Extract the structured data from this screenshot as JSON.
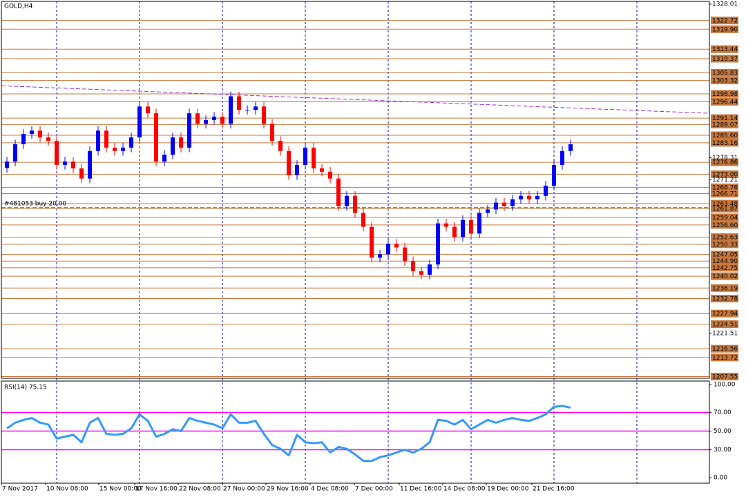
{
  "chart_data": [
    {
      "type": "candlestick",
      "title": "GOLD,H4",
      "x": [
        4,
        5,
        6,
        7,
        8,
        9,
        10,
        11,
        12,
        13,
        14,
        15,
        16,
        17,
        18,
        19,
        20,
        21,
        22,
        23,
        24,
        25,
        26,
        27,
        28,
        29,
        30,
        31,
        32,
        33,
        34,
        35,
        36,
        37,
        38,
        39,
        40,
        41,
        42,
        43,
        44,
        45,
        46,
        47,
        48,
        49,
        50,
        51,
        52,
        53,
        54,
        55,
        56,
        57,
        58,
        59,
        60,
        61,
        62,
        63,
        64,
        65,
        66,
        67,
        68,
        69,
        70,
        71,
        72
      ],
      "open": [
        1275.0,
        1277.1,
        1282.7,
        1286.0,
        1287.1,
        1284.9,
        1283.8,
        1276.0,
        1277.1,
        1274.9,
        1271.6,
        1280.5,
        1287.1,
        1281.6,
        1280.5,
        1281.6,
        1284.9,
        1294.9,
        1292.7,
        1277.1,
        1279.3,
        1284.9,
        1281.6,
        1292.7,
        1289.3,
        1290.5,
        1291.6,
        1289.3,
        1298.2,
        1293.8,
        1293.8,
        1294.9,
        1289.3,
        1283.8,
        1280.5,
        1272.7,
        1276.0,
        1281.6,
        1274.9,
        1273.8,
        1271.6,
        1262.7,
        1266.0,
        1260.5,
        1256.0,
        1246.0,
        1247.1,
        1250.5,
        1249.3,
        1244.9,
        1241.6,
        1240.5,
        1243.8,
        1257.1,
        1256.0,
        1252.7,
        1258.2,
        1253.8,
        1260.5,
        1261.6,
        1263.8,
        1262.7,
        1264.9,
        1266.0,
        1264.9,
        1266.0,
        1269.3,
        1276.0,
        1280.5
      ],
      "high": [
        1278.6,
        1284.2,
        1287.5,
        1288.6,
        1288.6,
        1286.4,
        1285.3,
        1278.6,
        1278.6,
        1276.4,
        1282.0,
        1288.6,
        1288.6,
        1283.1,
        1283.1,
        1286.4,
        1296.4,
        1296.4,
        1294.2,
        1280.8,
        1286.4,
        1286.4,
        1294.2,
        1294.2,
        1292.0,
        1293.1,
        1293.1,
        1299.7,
        1299.7,
        1295.3,
        1296.4,
        1296.4,
        1290.8,
        1285.3,
        1282.0,
        1277.5,
        1283.1,
        1283.1,
        1276.4,
        1275.3,
        1273.1,
        1267.5,
        1267.5,
        1262.0,
        1257.5,
        1248.6,
        1252.0,
        1252.0,
        1250.8,
        1246.4,
        1243.1,
        1245.3,
        1258.6,
        1258.6,
        1257.5,
        1259.7,
        1259.7,
        1262.0,
        1263.1,
        1265.3,
        1265.3,
        1266.4,
        1267.5,
        1267.5,
        1267.5,
        1270.8,
        1277.5,
        1282.0,
        1284.2
      ],
      "low": [
        1273.5,
        1275.6,
        1281.2,
        1284.5,
        1283.4,
        1282.3,
        1274.5,
        1274.5,
        1273.4,
        1270.1,
        1270.1,
        1279.0,
        1280.1,
        1279.0,
        1279.0,
        1280.1,
        1283.4,
        1291.2,
        1275.6,
        1275.6,
        1277.8,
        1280.1,
        1280.1,
        1287.8,
        1287.8,
        1289.0,
        1287.8,
        1287.8,
        1292.3,
        1292.3,
        1292.3,
        1287.8,
        1282.3,
        1279.0,
        1271.2,
        1271.2,
        1274.5,
        1273.4,
        1272.3,
        1270.1,
        1261.2,
        1261.2,
        1259.0,
        1254.5,
        1244.5,
        1244.5,
        1245.6,
        1247.8,
        1243.4,
        1240.1,
        1239.0,
        1239.0,
        1242.3,
        1254.5,
        1251.2,
        1251.2,
        1252.3,
        1252.3,
        1259.0,
        1260.1,
        1261.2,
        1261.2,
        1263.4,
        1263.4,
        1263.4,
        1264.5,
        1267.8,
        1274.5,
        1279.0
      ],
      "close": [
        1277.1,
        1282.7,
        1286.0,
        1287.1,
        1284.9,
        1283.8,
        1276.0,
        1277.1,
        1274.9,
        1271.6,
        1280.5,
        1287.1,
        1281.6,
        1280.5,
        1281.6,
        1284.9,
        1294.9,
        1292.7,
        1277.1,
        1279.3,
        1284.9,
        1281.6,
        1292.7,
        1289.3,
        1290.5,
        1291.6,
        1289.3,
        1298.2,
        1293.8,
        1293.8,
        1294.9,
        1289.3,
        1283.8,
        1280.5,
        1272.7,
        1276.0,
        1281.6,
        1274.9,
        1273.8,
        1271.6,
        1262.7,
        1266.0,
        1260.5,
        1256.0,
        1246.0,
        1247.1,
        1250.5,
        1249.3,
        1244.9,
        1241.6,
        1240.5,
        1243.8,
        1257.1,
        1256.0,
        1252.7,
        1258.2,
        1253.8,
        1260.5,
        1261.6,
        1263.8,
        1262.7,
        1264.9,
        1266.0,
        1264.9,
        1266.0,
        1269.3,
        1276.0,
        1280.5,
        1282.7
      ],
      "up_color": "#0000ff",
      "down_color": "#ff0000",
      "xlim": [
        3.33,
        88.75
      ],
      "ylim": [
        1207.0,
        1328.9
      ],
      "xticks": [
        {
          "value": 3.33,
          "label": "7 Nov 2017"
        },
        {
          "value": 8.67,
          "label": "10 Nov 08:00"
        },
        {
          "value": 15.08,
          "label": "15 Nov 00:00"
        },
        {
          "value": 19.42,
          "label": "17 Nov 16:00"
        },
        {
          "value": 24.67,
          "label": "22 Nov 08:00"
        },
        {
          "value": 30,
          "label": "27 Nov 00:00"
        },
        {
          "value": 35.25,
          "label": "29 Nov 16:00"
        },
        {
          "value": 40.58,
          "label": "4 Dec 08:00"
        },
        {
          "value": 45.92,
          "label": "7 Dec 00:00"
        },
        {
          "value": 51.33,
          "label": "11 Dec 16:00"
        },
        {
          "value": 56.58,
          "label": "14 Dec 08:00"
        },
        {
          "value": 61.83,
          "label": "19 Dec 00:00"
        },
        {
          "value": 67.33,
          "label": "21 Dec 16:00"
        }
      ],
      "xgrid": [
        10,
        20,
        30,
        40,
        50,
        60,
        70,
        80
      ],
      "grid_color": "#0000cc",
      "yticks": [
        1328.01,
        1278.31,
        1271.21,
        1221.51
      ],
      "levels": [
        1322.72,
        {
          "value": 1319.9,
          "label": "1319.90"
        },
        1313.44,
        1310.37,
        1305.83,
        1303.32,
        1298.98,
        1296.44,
        1291.14,
        1289.07,
        {
          "value": 1285.6,
          "label": "1285.60"
        },
        1283.16,
        1276.86,
        {
          "value": 1273,
          "label": "1273.00"
        },
        1268.76,
        1266.71,
        1263.48,
        1261.87,
        1259.04,
        {
          "value": 1256.6,
          "label": "1256.60"
        },
        1252.63,
        1250.33,
        1247.05,
        {
          "value": 1244.9,
          "label": "1244.90"
        },
        1242.75,
        1240.02,
        1236.19,
        1232.78,
        1227.94,
        1224.51,
        1216.56,
        1213.72,
        1207.55
      ],
      "level_color": "#c8783c",
      "trendline": {
        "x": [
          3.33,
          88.75
        ],
        "y": [
          1301.6,
          1292.7
        ],
        "color": "#9932cc"
      },
      "order": {
        "label": "#481053 buy 20.00",
        "price": 1262.2,
        "color": "#00a000"
      }
    },
    {
      "type": "line",
      "title": "RSI(14) 75.15",
      "x": [
        4,
        5,
        6,
        7,
        8,
        9,
        10,
        11,
        12,
        13,
        14,
        15,
        16,
        17,
        18,
        19,
        20,
        21,
        22,
        23,
        24,
        25,
        26,
        27,
        28,
        29,
        30,
        31,
        32,
        33,
        34,
        35,
        36,
        37,
        38,
        39,
        40,
        41,
        42,
        43,
        44,
        45,
        46,
        47,
        48,
        49,
        50,
        51,
        52,
        53,
        54,
        55,
        56,
        57,
        58,
        59,
        60,
        61,
        62,
        63,
        64,
        65,
        66,
        67,
        68,
        69,
        70,
        71,
        72
      ],
      "series": [
        {
          "color": "#3399ff",
          "values": [
            53,
            59,
            62,
            64,
            59,
            57,
            42,
            44,
            46,
            38,
            59,
            64,
            47,
            46,
            47,
            53,
            68,
            61,
            44,
            47,
            52,
            50,
            64,
            61,
            59,
            57,
            53,
            68,
            59,
            59,
            61,
            47,
            35,
            31,
            24,
            46,
            38,
            37,
            38,
            27,
            33,
            31,
            25,
            18,
            18,
            22,
            24,
            27,
            30,
            27,
            31,
            38,
            62,
            61,
            57,
            62,
            52,
            57,
            62,
            59,
            62,
            64,
            62,
            61,
            64,
            68,
            76,
            77,
            75.15
          ]
        }
      ],
      "xlim": [
        3.33,
        88.75
      ],
      "ylim": [
        -5.9,
        103.7
      ],
      "yticks": [
        {
          "value": 100,
          "label": "100.00"
        },
        {
          "value": 70,
          "label": "70.00"
        },
        {
          "value": 50,
          "label": "50.00"
        },
        {
          "value": 30,
          "label": "30.00"
        },
        {
          "value": 0,
          "label": "0.00"
        }
      ],
      "levels": [
        70,
        50,
        30
      ],
      "level_color": "#ff00ff"
    }
  ]
}
